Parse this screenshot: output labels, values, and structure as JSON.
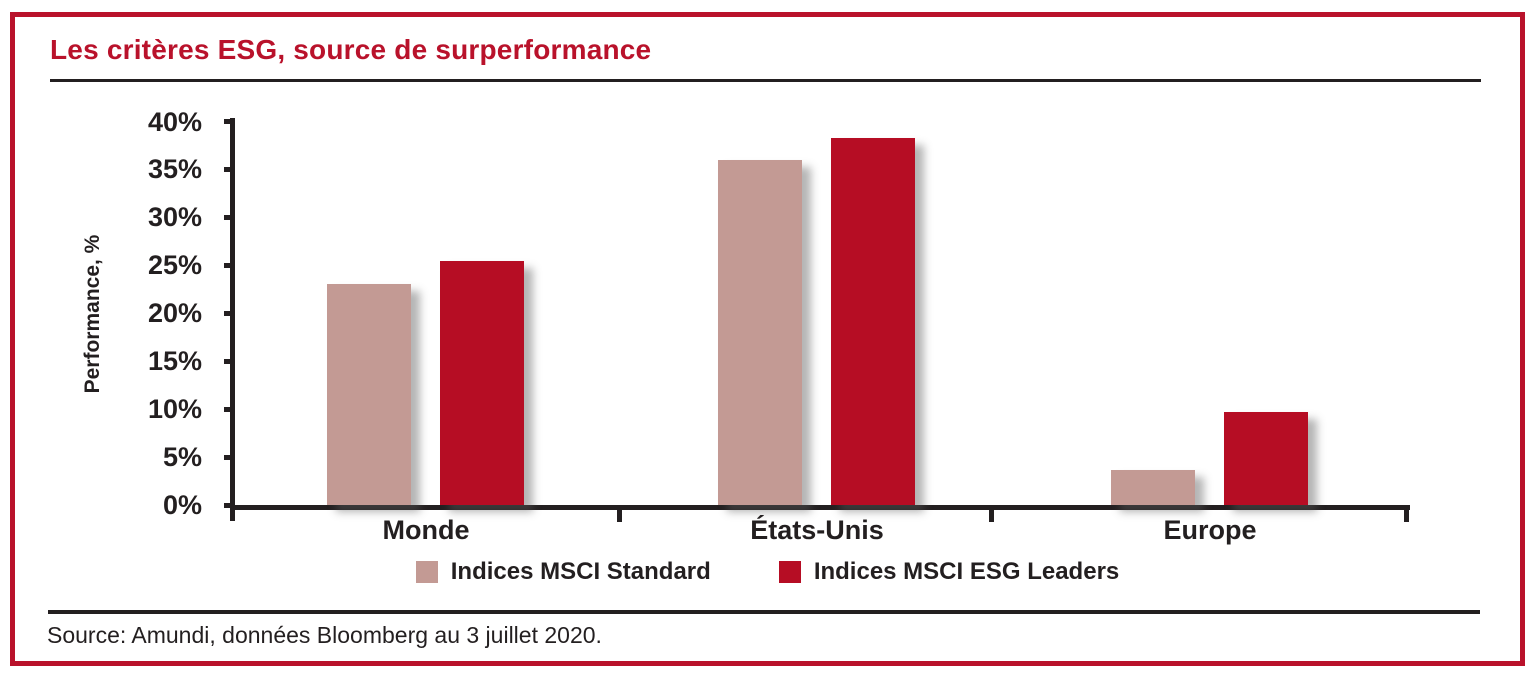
{
  "title": "Les critères ESG, source de surperformance",
  "source": "Source: Amundi, données Bloomberg au 3 juillet 2020.",
  "colors": {
    "accent_red": "#b9122b",
    "bar_standard": "#c39a94",
    "bar_esg_leaders": "#b60d24",
    "text_black": "#231f20"
  },
  "chart_data": {
    "type": "bar",
    "categories": [
      "Monde",
      "États-Unis",
      "Europe"
    ],
    "series": [
      {
        "name": "Indices MSCI Standard",
        "color": "#c39a94",
        "values": [
          23.0,
          36.0,
          3.6
        ]
      },
      {
        "name": "Indices MSCI ESG Leaders",
        "color": "#b60d24",
        "values": [
          25.4,
          38.3,
          9.7
        ]
      }
    ],
    "title": "Les critères ESG, source de surperformance",
    "xlabel": "",
    "ylabel": "Performance, %",
    "ylim": [
      0,
      40
    ],
    "ytick_step": 5,
    "ytick_labels": [
      "0%",
      "5%",
      "10%",
      "15%",
      "20%",
      "25%",
      "30%",
      "35%",
      "40%"
    ],
    "grid": false,
    "legend_position": "bottom"
  }
}
